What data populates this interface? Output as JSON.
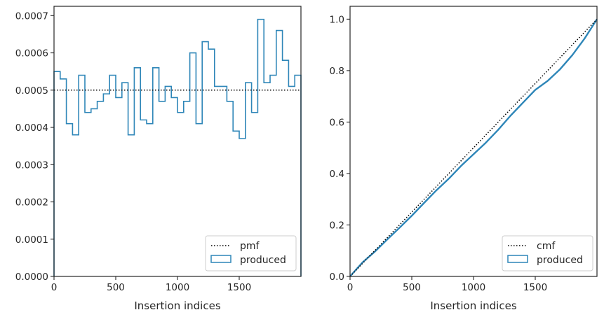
{
  "chart_data": [
    {
      "type": "histogram-step",
      "xlabel": "Insertion indices",
      "ylabel": "",
      "xlim": [
        0,
        2000
      ],
      "ylim": [
        0,
        0.000725
      ],
      "xticks": [
        0,
        500,
        1000,
        1500
      ],
      "yticks": [
        0,
        0.0001,
        0.0002,
        0.0003,
        0.0004,
        0.0005,
        0.0006,
        0.0007
      ],
      "ytick_labels": [
        "0.0000",
        "0.0001",
        "0.0002",
        "0.0003",
        "0.0004",
        "0.0005",
        "0.0006",
        "0.0007"
      ],
      "legend": {
        "position": "lower-right",
        "entries": [
          "pmf",
          "produced"
        ]
      },
      "pmf": {
        "name": "pmf",
        "value": 0.0005,
        "color": "#000000",
        "style": "dotted"
      },
      "produced": {
        "name": "produced",
        "color": "#2e86b8",
        "bin_width": 50,
        "bin_starts": [
          0,
          50,
          100,
          150,
          200,
          250,
          300,
          350,
          400,
          450,
          500,
          550,
          600,
          650,
          700,
          750,
          800,
          850,
          900,
          950,
          1000,
          1050,
          1100,
          1150,
          1200,
          1250,
          1300,
          1350,
          1400,
          1450,
          1500,
          1550,
          1600,
          1650,
          1700,
          1750,
          1800,
          1850,
          1900,
          1950
        ],
        "values": [
          0.00055,
          0.00053,
          0.00041,
          0.00038,
          0.00054,
          0.00044,
          0.00045,
          0.00047,
          0.00049,
          0.00054,
          0.00048,
          0.00052,
          0.00038,
          0.00056,
          0.00042,
          0.00041,
          0.00056,
          0.00047,
          0.00051,
          0.00048,
          0.00044,
          0.00047,
          0.0006,
          0.00041,
          0.00063,
          0.00061,
          0.00051,
          0.00051,
          0.00047,
          0.00039,
          0.00037,
          0.00052,
          0.00044,
          0.00069,
          0.00052,
          0.00054,
          0.00066,
          0.00058,
          0.00051,
          0.00054
        ]
      }
    },
    {
      "type": "line",
      "xlabel": "Insertion indices",
      "ylabel": "",
      "xlim": [
        0,
        2000
      ],
      "ylim": [
        0,
        1.05
      ],
      "xticks": [
        0,
        500,
        1000,
        1500
      ],
      "yticks": [
        0.0,
        0.2,
        0.4,
        0.6,
        0.8,
        1.0
      ],
      "ytick_labels": [
        "0.0",
        "0.2",
        "0.4",
        "0.6",
        "0.8",
        "1.0"
      ],
      "legend": {
        "position": "lower-right",
        "entries": [
          "cmf",
          "produced"
        ]
      },
      "cmf": {
        "name": "cmf",
        "x": [
          0,
          2000
        ],
        "y": [
          0,
          1.0
        ],
        "color": "#000000",
        "style": "dotted"
      },
      "produced": {
        "name": "produced",
        "color": "#2e86b8",
        "x": [
          0,
          100,
          200,
          300,
          400,
          500,
          600,
          700,
          800,
          900,
          1000,
          1100,
          1200,
          1300,
          1400,
          1500,
          1600,
          1700,
          1800,
          1900,
          2000
        ],
        "y": [
          0,
          0.054,
          0.096,
          0.143,
          0.189,
          0.236,
          0.286,
          0.335,
          0.38,
          0.43,
          0.475,
          0.52,
          0.57,
          0.625,
          0.675,
          0.725,
          0.76,
          0.805,
          0.86,
          0.925,
          1.0
        ]
      }
    }
  ]
}
